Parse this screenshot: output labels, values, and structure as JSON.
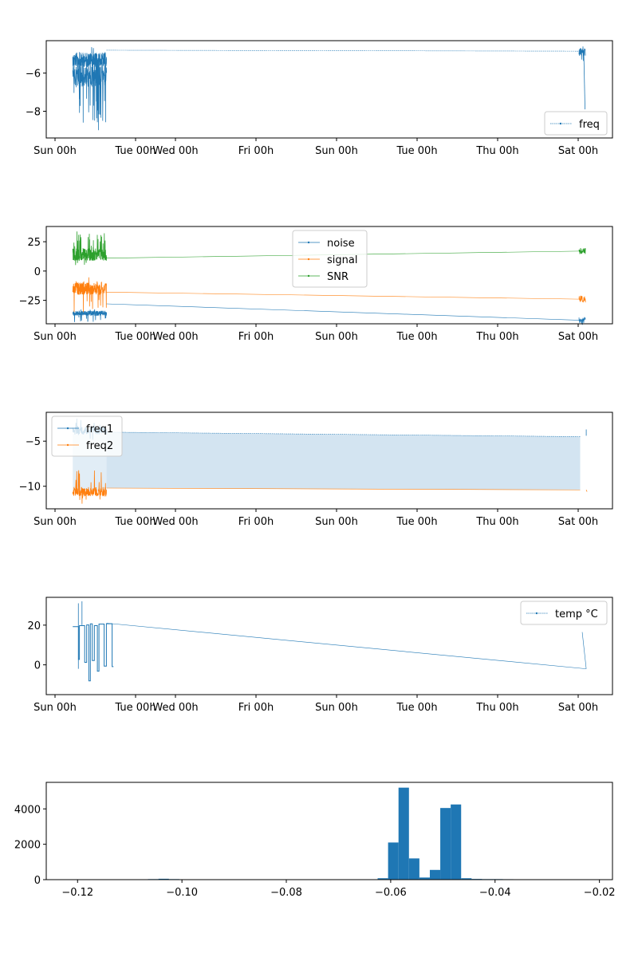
{
  "chart_data": [
    {
      "type": "line",
      "id": "panel-freq",
      "x_axis": {
        "range": [
          "Sun 00h",
          "Sat 00h + ~1.5 days"
        ],
        "tick_labels": [
          "Sun 00h",
          "Tue 00h",
          "Wed 00h",
          "Fri 00h",
          "Sun 00h",
          "Tue 00h",
          "Thu 00h",
          "Sat 00h"
        ]
      },
      "y_axis": {
        "ylim": [
          -9.4,
          -4.3
        ],
        "tick_values": [
          -8,
          -6
        ],
        "tick_labels": [
          "−8",
          "−6"
        ]
      },
      "legend": {
        "position": "lower right",
        "entries": [
          "freq"
        ]
      },
      "series": [
        {
          "name": "freq",
          "color": "#1f77b4",
          "style": "dotted line with small markers",
          "segments": [
            {
              "x_days": [
                0.25,
                1.6
              ],
              "y_range": [
                -9.2,
                -4.6
              ],
              "note": "dense noisy cluster"
            },
            {
              "x_days": [
                1.6,
                15.5
              ],
              "y": [
                -4.8,
                -4.9
              ],
              "note": "sparse connecting line"
            },
            {
              "x_days": [
                15.5,
                15.7
              ],
              "y_range": [
                -7.9,
                -4.6
              ],
              "note": "small cluster"
            }
          ]
        }
      ]
    },
    {
      "type": "line",
      "id": "panel-snr",
      "x_axis": {
        "tick_labels": [
          "Sun 00h",
          "Tue 00h",
          "Wed 00h",
          "Fri 00h",
          "Sun 00h",
          "Tue 00h",
          "Thu 00h",
          "Sat 00h"
        ]
      },
      "y_axis": {
        "ylim": [
          -45,
          38
        ],
        "tick_values": [
          -25,
          0,
          25
        ],
        "tick_labels": [
          "−25",
          "0",
          "25"
        ]
      },
      "legend": {
        "position": "upper center",
        "entries": [
          "noise",
          "signal",
          "SNR"
        ]
      },
      "series": [
        {
          "name": "noise",
          "color": "#1f77b4",
          "level_start": -28,
          "level_end": -42,
          "cluster_range": [
            -44,
            -32
          ]
        },
        {
          "name": "signal",
          "color": "#ff7f0e",
          "level_start": -18,
          "level_end": -24,
          "cluster_range": [
            -35,
            -5
          ]
        },
        {
          "name": "SNR",
          "color": "#2ca02c",
          "level_start": 11,
          "level_end": 17,
          "cluster_range": [
            5,
            35
          ]
        }
      ]
    },
    {
      "type": "area",
      "id": "panel-freq12",
      "x_axis": {
        "tick_labels": [
          "Sun 00h",
          "Tue 00h",
          "Wed 00h",
          "Fri 00h",
          "Sun 00h",
          "Tue 00h",
          "Thu 00h",
          "Sat 00h"
        ]
      },
      "y_axis": {
        "ylim": [
          -12.5,
          -1.8
        ],
        "tick_values": [
          -10,
          -5
        ],
        "tick_labels": [
          "−10",
          "−5"
        ]
      },
      "legend": {
        "position": "upper left",
        "entries": [
          "freq1",
          "freq2"
        ]
      },
      "series": [
        {
          "name": "freq1",
          "color": "#1f77b4",
          "level_start": -4.0,
          "level_end": -4.5,
          "cluster_range": [
            -5.0,
            -2.3
          ]
        },
        {
          "name": "freq2",
          "color": "#ff7f0e",
          "level_start": -10.2,
          "level_end": -10.4,
          "cluster_range": [
            -12.0,
            -8.0
          ]
        }
      ],
      "fill_between": {
        "color": "#b5d2e8",
        "between": [
          "freq1",
          "freq2"
        ]
      }
    },
    {
      "type": "line",
      "id": "panel-temp",
      "x_axis": {
        "tick_labels": [
          "Sun 00h",
          "Tue 00h",
          "Wed 00h",
          "Fri 00h",
          "Sun 00h",
          "Tue 00h",
          "Thu 00h",
          "Sat 00h"
        ]
      },
      "y_axis": {
        "ylim": [
          -15,
          34
        ],
        "tick_values": [
          0,
          20
        ],
        "tick_labels": [
          "0",
          "20"
        ]
      },
      "legend": {
        "position": "upper right",
        "entries": [
          "temp °C"
        ]
      },
      "series": [
        {
          "name": "temp °C",
          "color": "#1f77b4",
          "cluster_range": [
            -14,
            32
          ],
          "level_start": 21,
          "level_end": -2,
          "tail": [
            16.5,
            -2
          ]
        }
      ]
    },
    {
      "type": "bar",
      "id": "panel-hist",
      "x_axis": {
        "xlim": [
          -0.126,
          -0.0175
        ],
        "tick_values": [
          -0.12,
          -0.1,
          -0.08,
          -0.06,
          -0.04,
          -0.02
        ],
        "tick_labels": [
          "−0.12",
          "−0.10",
          "−0.08",
          "−0.06",
          "−0.04",
          "−0.02"
        ]
      },
      "y_axis": {
        "ylim": [
          0,
          5500
        ],
        "tick_values": [
          0,
          2000,
          4000
        ],
        "tick_labels": [
          "0",
          "2000",
          "4000"
        ]
      },
      "bin_width": 0.002,
      "bins": [
        {
          "x": -0.1155,
          "count": 20
        },
        {
          "x": -0.1135,
          "count": 20
        },
        {
          "x": -0.1075,
          "count": 20
        },
        {
          "x": -0.1055,
          "count": 30
        },
        {
          "x": -0.1035,
          "count": 50
        },
        {
          "x": -0.1015,
          "count": 30
        },
        {
          "x": -0.0775,
          "count": 20
        },
        {
          "x": -0.0615,
          "count": 80
        },
        {
          "x": -0.0595,
          "count": 2100
        },
        {
          "x": -0.0575,
          "count": 5200
        },
        {
          "x": -0.0555,
          "count": 1200
        },
        {
          "x": -0.0535,
          "count": 120
        },
        {
          "x": -0.0515,
          "count": 550
        },
        {
          "x": -0.0495,
          "count": 4050
        },
        {
          "x": -0.0475,
          "count": 4250
        },
        {
          "x": -0.0455,
          "count": 80
        },
        {
          "x": -0.0435,
          "count": 40
        },
        {
          "x": -0.0415,
          "count": 30
        },
        {
          "x": -0.0395,
          "count": 30
        },
        {
          "x": -0.0375,
          "count": 25
        },
        {
          "x": -0.0355,
          "count": 20
        },
        {
          "x": -0.0295,
          "count": 20
        }
      ],
      "color": "#1f77b4"
    }
  ]
}
